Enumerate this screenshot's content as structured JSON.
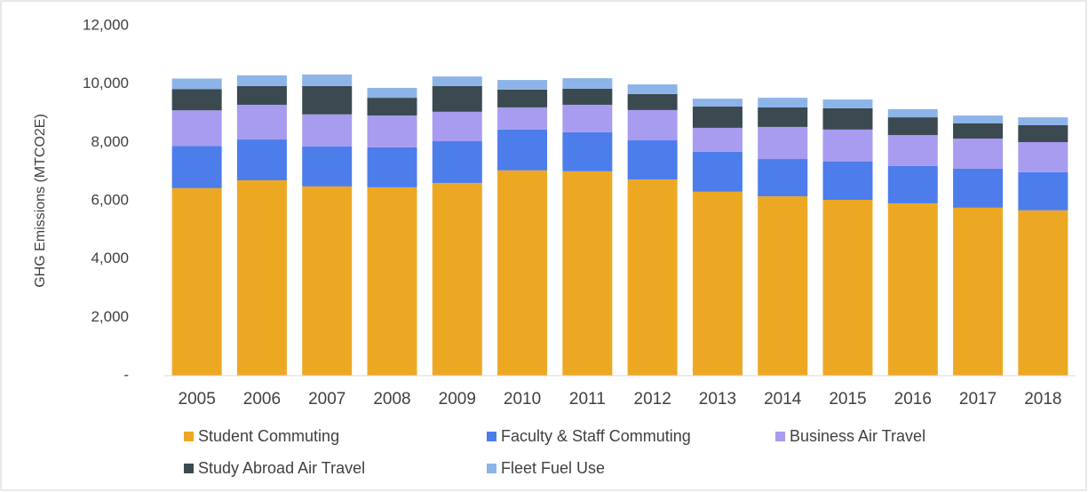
{
  "chart_data": {
    "type": "stacked_bar",
    "y_label": "GHG Emissions (MTCO2E)",
    "categories": [
      "2005",
      "2006",
      "2007",
      "2008",
      "2009",
      "2010",
      "2011",
      "2012",
      "2013",
      "2014",
      "2015",
      "2016",
      "2017",
      "2018"
    ],
    "series": [
      {
        "name": "Student Commuting",
        "color": "#eda823",
        "values": [
          6430,
          6700,
          6490,
          6460,
          6610,
          7040,
          7010,
          6730,
          6310,
          6150,
          6030,
          5910,
          5760,
          5670
        ]
      },
      {
        "name": "Faculty & Staff Commuting",
        "color": "#4c7deb",
        "values": [
          1450,
          1400,
          1370,
          1370,
          1430,
          1400,
          1340,
          1340,
          1370,
          1280,
          1310,
          1280,
          1340,
          1310
        ]
      },
      {
        "name": "Business Air Travel",
        "color": "#a79cf0",
        "values": [
          1220,
          1190,
          1100,
          1090,
          1010,
          760,
          940,
          1040,
          820,
          1100,
          1100,
          1060,
          1030,
          1030
        ]
      },
      {
        "name": "Study Abroad Air Travel",
        "color": "#3b4a50",
        "values": [
          730,
          640,
          970,
          610,
          880,
          610,
          550,
          550,
          730,
          670,
          730,
          610,
          520,
          580
        ]
      },
      {
        "name": "Fleet Fuel Use",
        "color": "#8db4e8",
        "values": [
          360,
          370,
          400,
          340,
          330,
          330,
          360,
          330,
          270,
          330,
          300,
          280,
          270,
          270
        ]
      }
    ],
    "ylim": [
      0,
      12000
    ],
    "yticks": [
      {
        "value": 0,
        "label": "-"
      },
      {
        "value": 2000,
        "label": "2,000"
      },
      {
        "value": 4000,
        "label": "4,000"
      },
      {
        "value": 6000,
        "label": "6,000"
      },
      {
        "value": 8000,
        "label": "8,000"
      },
      {
        "value": 10000,
        "label": "10,000"
      },
      {
        "value": 12000,
        "label": "12,000"
      }
    ],
    "grid": false
  }
}
